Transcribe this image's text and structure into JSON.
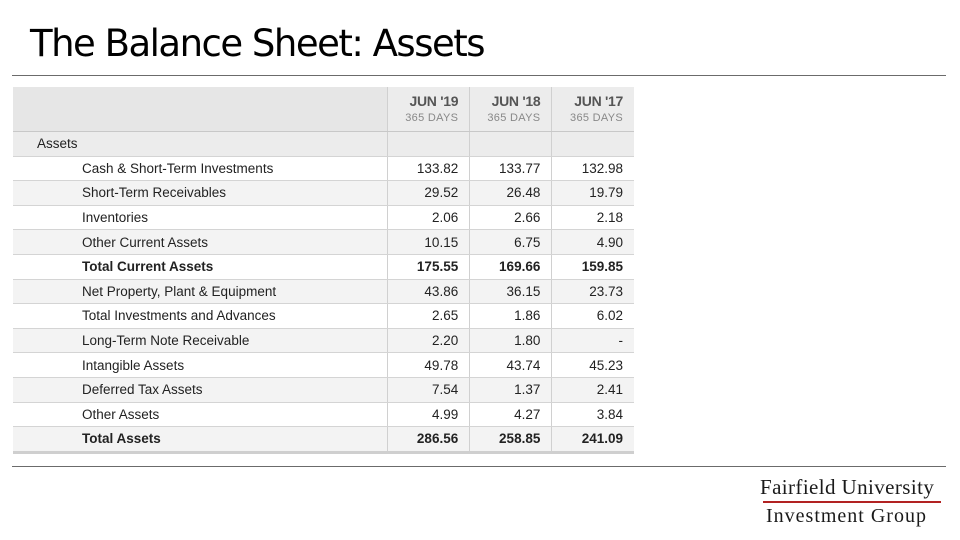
{
  "slide": {
    "title": "The Balance Sheet: Assets"
  },
  "table": {
    "columns": [
      {
        "period": "JUN '19",
        "days": "365 DAYS"
      },
      {
        "period": "JUN '18",
        "days": "365 DAYS"
      },
      {
        "period": "JUN '17",
        "days": "365 DAYS"
      }
    ],
    "section_label": "Assets",
    "rows": [
      {
        "label": "Cash & Short-Term Investments",
        "values": [
          "133.82",
          "133.77",
          "132.98"
        ],
        "bold": false
      },
      {
        "label": "Short-Term Receivables",
        "values": [
          "29.52",
          "26.48",
          "19.79"
        ],
        "bold": false
      },
      {
        "label": "Inventories",
        "values": [
          "2.06",
          "2.66",
          "2.18"
        ],
        "bold": false
      },
      {
        "label": "Other Current Assets",
        "values": [
          "10.15",
          "6.75",
          "4.90"
        ],
        "bold": false
      },
      {
        "label": "Total Current Assets",
        "values": [
          "175.55",
          "169.66",
          "159.85"
        ],
        "bold": true
      },
      {
        "label": "Net Property, Plant & Equipment",
        "values": [
          "43.86",
          "36.15",
          "23.73"
        ],
        "bold": false
      },
      {
        "label": "Total Investments and Advances",
        "values": [
          "2.65",
          "1.86",
          "6.02"
        ],
        "bold": false
      },
      {
        "label": "Long-Term Note Receivable",
        "values": [
          "2.20",
          "1.80",
          "-"
        ],
        "bold": false
      },
      {
        "label": "Intangible Assets",
        "values": [
          "49.78",
          "43.74",
          "45.23"
        ],
        "bold": false
      },
      {
        "label": "Deferred Tax Assets",
        "values": [
          "7.54",
          "1.37",
          "2.41"
        ],
        "bold": false
      },
      {
        "label": "Other Assets",
        "values": [
          "4.99",
          "4.27",
          "3.84"
        ],
        "bold": false
      },
      {
        "label": "Total Assets",
        "values": [
          "286.56",
          "258.85",
          "241.09"
        ],
        "bold": true
      }
    ]
  },
  "logo": {
    "line1": "Fairfield University",
    "line2": "Investment Group"
  },
  "colors": {
    "header_bg": "#e6e6e6",
    "stripe_bg": "#f3f3f3",
    "logo_rule": "#b22222"
  }
}
